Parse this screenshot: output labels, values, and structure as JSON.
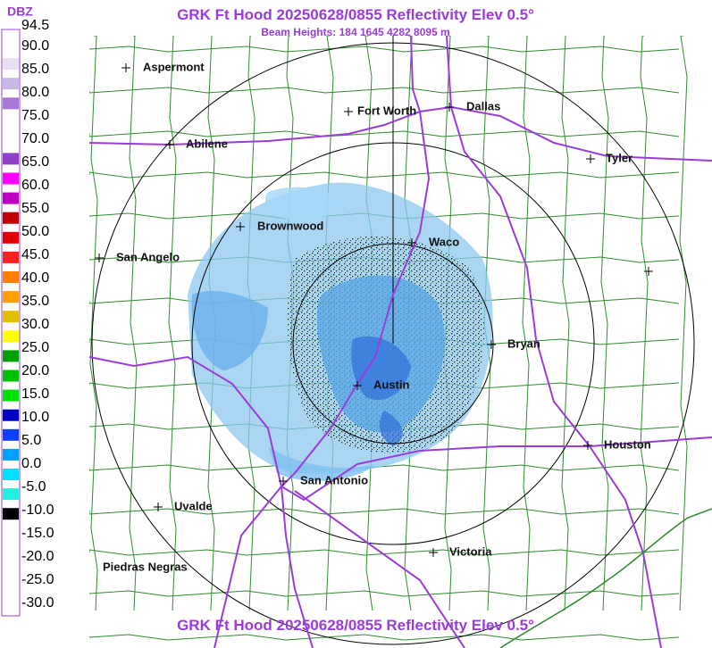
{
  "title": "GRK Ft Hood 20250628/0855 Reflectivity Elev 0.5°",
  "subtitle": "Beam Heights: 184 1645 4282 8095 m",
  "footer_title": "GRK Ft Hood 20250628/0855 Reflectivity Elev 0.5°",
  "legend": {
    "unit": "DBZ",
    "labels": [
      "94.5",
      "90.0",
      "85.0",
      "80.0",
      "75.0",
      "70.0",
      "65.0",
      "60.0",
      "55.0",
      "50.0",
      "45.0",
      "40.0",
      "35.0",
      "30.0",
      "25.0",
      "20.0",
      "15.0",
      "10.0",
      "5.0",
      "0.0",
      "-5.0",
      "-10.0",
      "-15.0",
      "-20.0",
      "-25.0",
      "-30.0"
    ]
  },
  "cities": [
    {
      "label": "Aspermont"
    },
    {
      "label": "Fort Worth"
    },
    {
      "label": "Dallas"
    },
    {
      "label": "Abilene"
    },
    {
      "label": "Tyler"
    },
    {
      "label": "Brownwood"
    },
    {
      "label": "Waco"
    },
    {
      "label": "San Angelo"
    },
    {
      "label": "Bryan"
    },
    {
      "label": "Austin"
    },
    {
      "label": "Houston"
    },
    {
      "label": "San Antonio"
    },
    {
      "label": "Uvalde"
    },
    {
      "label": "Piedras Negras"
    },
    {
      "label": "Victoria"
    }
  ]
}
